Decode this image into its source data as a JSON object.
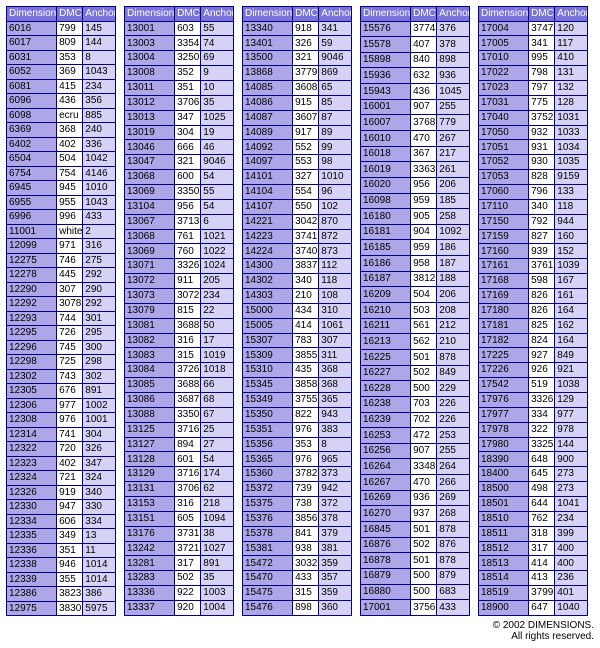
{
  "headers": {
    "dim": "Dimensions",
    "dmc": "DMC",
    "anc": "Anchor"
  },
  "footer": {
    "line1": "© 2002 DIMENSIONS.",
    "line2": "All rights reserved."
  },
  "colors": {
    "header_bg": "#7a73d9",
    "dim_bg": "#ada7e8",
    "dmc_bg": "#ffffff",
    "anc_bg": "#d6d2f5",
    "border": "#000080"
  },
  "columns": [
    [
      [
        "6016",
        "799",
        "145"
      ],
      [
        "6017",
        "809",
        "144"
      ],
      [
        "6031",
        "353",
        "8"
      ],
      [
        "6052",
        "369",
        "1043"
      ],
      [
        "6081",
        "415",
        "234"
      ],
      [
        "6096",
        "436",
        "356"
      ],
      [
        "6098",
        "ecru",
        "885"
      ],
      [
        "6369",
        "368",
        "240"
      ],
      [
        "6402",
        "402",
        "336"
      ],
      [
        "6504",
        "504",
        "1042"
      ],
      [
        "6754",
        "754",
        "4146"
      ],
      [
        "6945",
        "945",
        "1010"
      ],
      [
        "6955",
        "955",
        "1043"
      ],
      [
        "6996",
        "996",
        "433"
      ],
      [
        "11001",
        "white",
        "2"
      ],
      [
        "12099",
        "971",
        "316"
      ],
      [
        "12275",
        "746",
        "275"
      ],
      [
        "12278",
        "445",
        "292"
      ],
      [
        "12290",
        "307",
        "290"
      ],
      [
        "12292",
        "3078",
        "292"
      ],
      [
        "12293",
        "744",
        "301"
      ],
      [
        "12295",
        "726",
        "295"
      ],
      [
        "12296",
        "745",
        "300"
      ],
      [
        "12298",
        "725",
        "298"
      ],
      [
        "12302",
        "743",
        "302"
      ],
      [
        "12305",
        "676",
        "891"
      ],
      [
        "12306",
        "977",
        "1002"
      ],
      [
        "12308",
        "976",
        "1001"
      ],
      [
        "12314",
        "741",
        "304"
      ],
      [
        "12322",
        "720",
        "326"
      ],
      [
        "12323",
        "402",
        "347"
      ],
      [
        "12324",
        "721",
        "324"
      ],
      [
        "12326",
        "919",
        "340"
      ],
      [
        "12330",
        "947",
        "330"
      ],
      [
        "12334",
        "606",
        "334"
      ],
      [
        "12335",
        "349",
        "13"
      ],
      [
        "12336",
        "351",
        "11"
      ],
      [
        "12338",
        "946",
        "1014"
      ],
      [
        "12339",
        "355",
        "1014"
      ],
      [
        "12386",
        "3823",
        "386"
      ],
      [
        "12975",
        "3830",
        "5975"
      ]
    ],
    [
      [
        "13001",
        "603",
        "55"
      ],
      [
        "13003",
        "3354",
        "74"
      ],
      [
        "13004",
        "3250",
        "69"
      ],
      [
        "13008",
        "352",
        "9"
      ],
      [
        "13011",
        "351",
        "10"
      ],
      [
        "13012",
        "3706",
        "35"
      ],
      [
        "13013",
        "347",
        "1025"
      ],
      [
        "13019",
        "304",
        "19"
      ],
      [
        "13046",
        "666",
        "46"
      ],
      [
        "13047",
        "321",
        "9046"
      ],
      [
        "13068",
        "600",
        "54"
      ],
      [
        "13069",
        "3350",
        "55"
      ],
      [
        "13104",
        "956",
        "54"
      ],
      [
        "13067",
        "3713",
        "6"
      ],
      [
        "13068",
        "761",
        "1021"
      ],
      [
        "13069",
        "760",
        "1022"
      ],
      [
        "13071",
        "3326",
        "1024"
      ],
      [
        "13072",
        "911",
        "205"
      ],
      [
        "13073",
        "3072",
        "234"
      ],
      [
        "13079",
        "815",
        "22"
      ],
      [
        "13081",
        "3688",
        "50"
      ],
      [
        "13082",
        "316",
        "17"
      ],
      [
        "13083",
        "315",
        "1019"
      ],
      [
        "13084",
        "3726",
        "1018"
      ],
      [
        "13085",
        "3688",
        "66"
      ],
      [
        "13086",
        "3687",
        "68"
      ],
      [
        "13088",
        "3350",
        "67"
      ],
      [
        "13125",
        "3716",
        "25"
      ],
      [
        "13127",
        "894",
        "27"
      ],
      [
        "13128",
        "601",
        "54"
      ],
      [
        "13129",
        "3716",
        "174"
      ],
      [
        "13131",
        "3706",
        "62"
      ],
      [
        "13153",
        "316",
        "218"
      ],
      [
        "13151",
        "605",
        "1094"
      ],
      [
        "13176",
        "3731",
        "38"
      ],
      [
        "13242",
        "3721",
        "1027"
      ],
      [
        "13281",
        "317",
        "891"
      ],
      [
        "13283",
        "502",
        "35"
      ],
      [
        "13336",
        "922",
        "1003"
      ],
      [
        "13337",
        "920",
        "1004"
      ]
    ],
    [
      [
        "13340",
        "918",
        "341"
      ],
      [
        "13401",
        "326",
        "59"
      ],
      [
        "13500",
        "321",
        "9046"
      ],
      [
        "13868",
        "3779",
        "869"
      ],
      [
        "14085",
        "3608",
        "65"
      ],
      [
        "14086",
        "915",
        "85"
      ],
      [
        "14087",
        "3607",
        "87"
      ],
      [
        "14089",
        "917",
        "89"
      ],
      [
        "14092",
        "552",
        "99"
      ],
      [
        "14097",
        "553",
        "98"
      ],
      [
        "14101",
        "327",
        "1010"
      ],
      [
        "14104",
        "554",
        "96"
      ],
      [
        "14107",
        "550",
        "102"
      ],
      [
        "14221",
        "3042",
        "870"
      ],
      [
        "14223",
        "3741",
        "872"
      ],
      [
        "14224",
        "3740",
        "873"
      ],
      [
        "14300",
        "3837",
        "112"
      ],
      [
        "14302",
        "340",
        "118"
      ],
      [
        "14303",
        "210",
        "108"
      ],
      [
        "15000",
        "434",
        "310"
      ],
      [
        "15005",
        "414",
        "1061"
      ],
      [
        "15307",
        "783",
        "307"
      ],
      [
        "15309",
        "3855",
        "311"
      ],
      [
        "15310",
        "435",
        "368"
      ],
      [
        "15345",
        "3858",
        "368"
      ],
      [
        "15349",
        "3755",
        "365"
      ],
      [
        "15350",
        "822",
        "943"
      ],
      [
        "15351",
        "976",
        "383"
      ],
      [
        "15356",
        "353",
        "8"
      ],
      [
        "15365",
        "976",
        "965"
      ],
      [
        "15360",
        "3782",
        "373"
      ],
      [
        "15372",
        "739",
        "942"
      ],
      [
        "15375",
        "738",
        "372"
      ],
      [
        "15376",
        "3856",
        "378"
      ],
      [
        "15378",
        "841",
        "379"
      ],
      [
        "15381",
        "938",
        "381"
      ],
      [
        "15472",
        "3032",
        "359"
      ],
      [
        "15470",
        "433",
        "357"
      ],
      [
        "15475",
        "315",
        "359"
      ],
      [
        "15476",
        "898",
        "360"
      ]
    ],
    [
      [
        "15576",
        "3774",
        "376"
      ],
      [
        "15578",
        "407",
        "378"
      ],
      [
        "15898",
        "840",
        "898"
      ],
      [
        "15936",
        "632",
        "936"
      ],
      [
        "15943",
        "436",
        "1045"
      ],
      [
        "16001",
        "907",
        "255"
      ],
      [
        "16007",
        "3768",
        "779"
      ],
      [
        "16010",
        "470",
        "267"
      ],
      [
        "16018",
        "367",
        "217"
      ],
      [
        "16019",
        "3363",
        "261"
      ],
      [
        "16020",
        "956",
        "206"
      ],
      [
        "16098",
        "959",
        "185"
      ],
      [
        "16180",
        "905",
        "258"
      ],
      [
        "16181",
        "904",
        "1092"
      ],
      [
        "16185",
        "959",
        "186"
      ],
      [
        "16186",
        "958",
        "187"
      ],
      [
        "16187",
        "3812",
        "188"
      ],
      [
        "16209",
        "504",
        "206"
      ],
      [
        "16210",
        "503",
        "208"
      ],
      [
        "16211",
        "561",
        "212"
      ],
      [
        "16213",
        "562",
        "210"
      ],
      [
        "16225",
        "501",
        "878"
      ],
      [
        "16227",
        "502",
        "849"
      ],
      [
        "16228",
        "500",
        "229"
      ],
      [
        "16238",
        "703",
        "226"
      ],
      [
        "16239",
        "702",
        "226"
      ],
      [
        "16253",
        "472",
        "253"
      ],
      [
        "16256",
        "907",
        "255"
      ],
      [
        "16264",
        "3348",
        "264"
      ],
      [
        "16267",
        "470",
        "266"
      ],
      [
        "16269",
        "936",
        "269"
      ],
      [
        "16270",
        "937",
        "268"
      ],
      [
        "16845",
        "501",
        "878"
      ],
      [
        "16876",
        "502",
        "876"
      ],
      [
        "16878",
        "501",
        "878"
      ],
      [
        "16879",
        "500",
        "879"
      ],
      [
        "16880",
        "500",
        "683"
      ],
      [
        "17001",
        "3756",
        "433"
      ]
    ],
    [
      [
        "17004",
        "3747",
        "120"
      ],
      [
        "17005",
        "341",
        "117"
      ],
      [
        "17010",
        "995",
        "410"
      ],
      [
        "17022",
        "798",
        "131"
      ],
      [
        "17023",
        "797",
        "132"
      ],
      [
        "17031",
        "775",
        "128"
      ],
      [
        "17040",
        "3752",
        "1031"
      ],
      [
        "17050",
        "932",
        "1033"
      ],
      [
        "17051",
        "931",
        "1034"
      ],
      [
        "17052",
        "930",
        "1035"
      ],
      [
        "17053",
        "828",
        "9159"
      ],
      [
        "17060",
        "796",
        "133"
      ],
      [
        "17110",
        "340",
        "118"
      ],
      [
        "17150",
        "792",
        "944"
      ],
      [
        "17159",
        "827",
        "160"
      ],
      [
        "17160",
        "939",
        "152"
      ],
      [
        "17161",
        "3761",
        "1039"
      ],
      [
        "17168",
        "598",
        "167"
      ],
      [
        "17169",
        "826",
        "161"
      ],
      [
        "17180",
        "826",
        "164"
      ],
      [
        "17181",
        "825",
        "162"
      ],
      [
        "17182",
        "824",
        "164"
      ],
      [
        "17225",
        "927",
        "849"
      ],
      [
        "17226",
        "926",
        "921"
      ],
      [
        "17542",
        "519",
        "1038"
      ],
      [
        "17976",
        "3326",
        "129"
      ],
      [
        "17977",
        "334",
        "977"
      ],
      [
        "17978",
        "322",
        "978"
      ],
      [
        "17980",
        "3325",
        "144"
      ],
      [
        "18390",
        "648",
        "900"
      ],
      [
        "18400",
        "645",
        "273"
      ],
      [
        "18500",
        "498",
        "273"
      ],
      [
        "18501",
        "644",
        "1041"
      ],
      [
        "18510",
        "762",
        "234"
      ],
      [
        "18511",
        "318",
        "399"
      ],
      [
        "18512",
        "317",
        "400"
      ],
      [
        "18513",
        "414",
        "400"
      ],
      [
        "18514",
        "413",
        "236"
      ],
      [
        "18519",
        "3799",
        "401"
      ],
      [
        "18900",
        "647",
        "1040"
      ]
    ]
  ]
}
